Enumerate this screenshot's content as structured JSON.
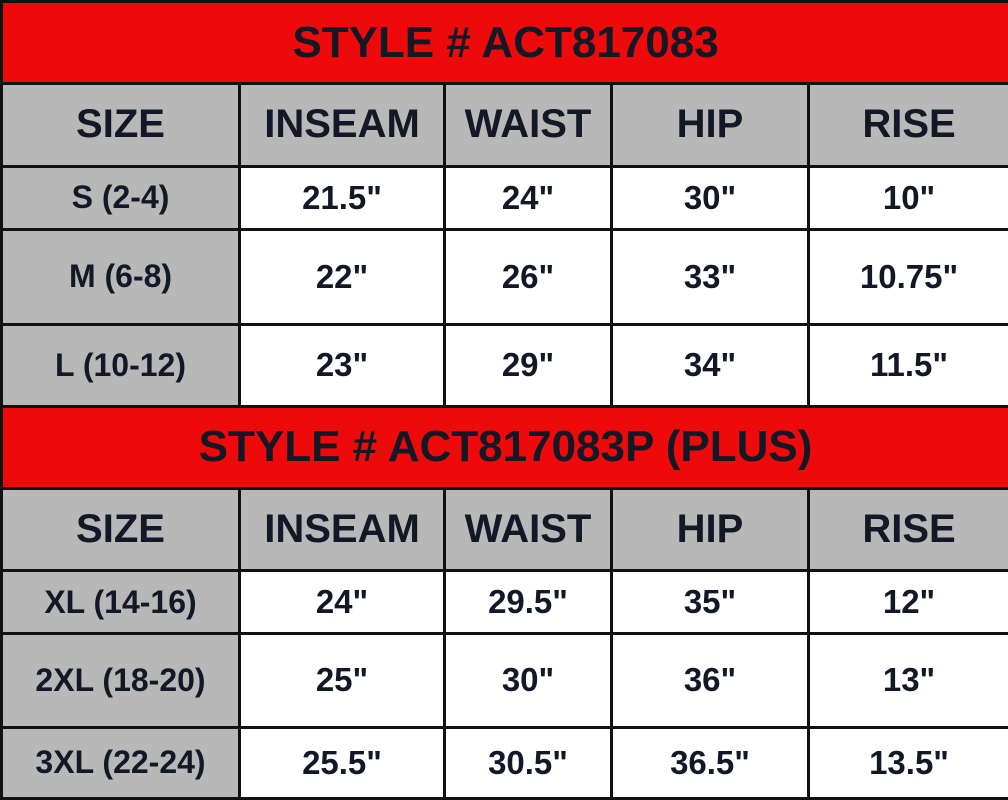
{
  "colors": {
    "title_bg": "#ee0a0a",
    "header_bg": "#b8b8b8",
    "cell_bg": "#ffffff",
    "text": "#121826"
  },
  "columns": [
    "SIZE",
    "INSEAM",
    "WAIST",
    "HIP",
    "RISE"
  ],
  "sections": [
    {
      "title": "STYLE #  ACT817083",
      "rows": [
        [
          "S (2-4)",
          "21.5\"",
          "24\"",
          "30\"",
          "10\""
        ],
        [
          "M (6-8)",
          "22\"",
          "26\"",
          "33\"",
          "10.75\""
        ],
        [
          "L (10-12)",
          "23\"",
          "29\"",
          "34\"",
          "11.5\""
        ]
      ]
    },
    {
      "title": "STYLE # ACT817083P (PLUS)",
      "rows": [
        [
          "XL (14-16)",
          "24\"",
          "29.5\"",
          "35\"",
          "12\""
        ],
        [
          "2XL (18-20)",
          "25\"",
          "30\"",
          "36\"",
          "13\""
        ],
        [
          "3XL (22-24)",
          "25.5\"",
          "30.5\"",
          "36.5\"",
          "13.5\""
        ]
      ]
    }
  ]
}
